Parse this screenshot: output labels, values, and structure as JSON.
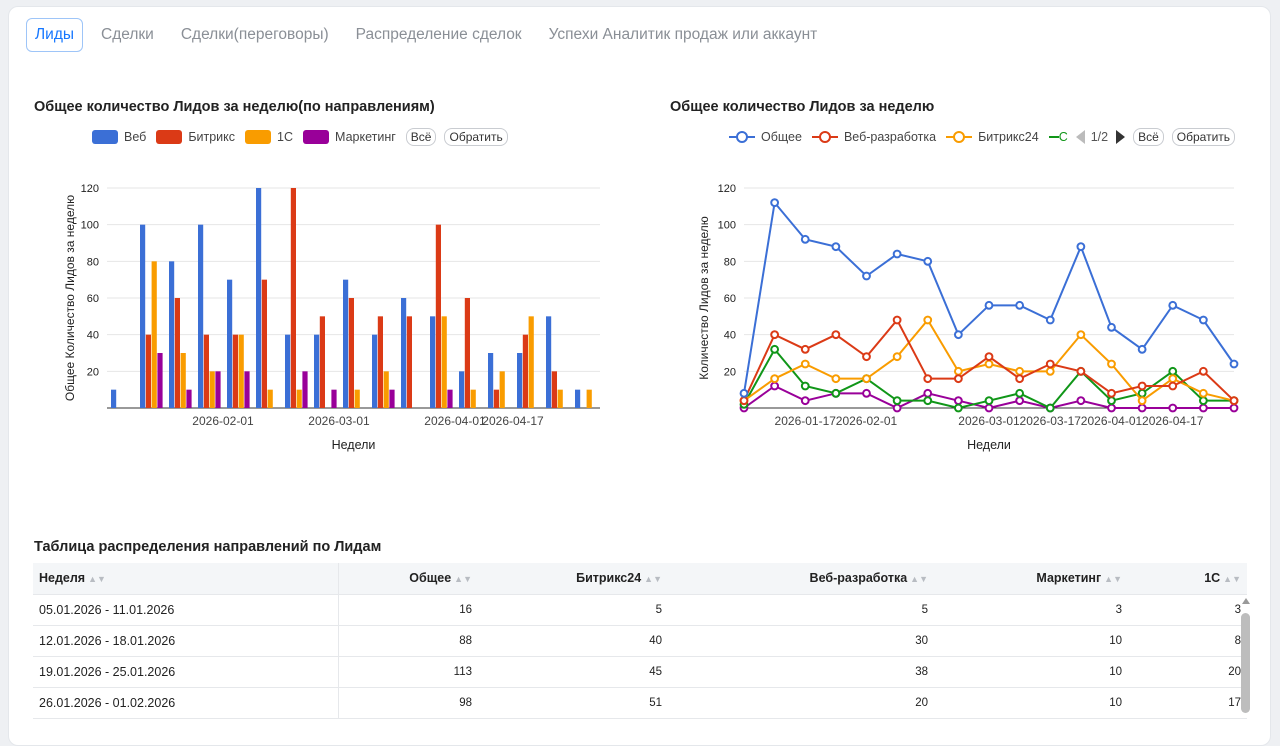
{
  "tabs": [
    {
      "label": "Лиды",
      "active": true
    },
    {
      "label": "Сделки",
      "active": false
    },
    {
      "label": "Сделки(переговоры)",
      "active": false
    },
    {
      "label": "Распределение сделок",
      "active": false
    },
    {
      "label": "Успехи Аналитик продаж или аккаунт",
      "active": false
    }
  ],
  "bar_chart": {
    "title": "Общее количество Лидов за неделю(по направлениям)",
    "legend": [
      {
        "label": "Веб",
        "color": "#3b6fd6"
      },
      {
        "label": "Битрикс",
        "color": "#db3a16"
      },
      {
        "label": "1С",
        "color": "#f99c00"
      },
      {
        "label": "Маркетинг",
        "color": "#990099"
      }
    ],
    "btn_all": "Всё",
    "btn_invert": "Обратить"
  },
  "line_chart": {
    "title": "Общее количество Лидов за неделю",
    "legend": [
      {
        "label": "Общее",
        "color": "#3b6fd6"
      },
      {
        "label": "Веб-разработка",
        "color": "#db3a16"
      },
      {
        "label": "Битрикс24",
        "color": "#f99c00"
      }
    ],
    "legend_cut_color": "#109618",
    "legend_cut_glyph": "С",
    "pager": "1/2",
    "btn_all": "Всё",
    "btn_invert": "Обратить"
  },
  "chart_data": [
    {
      "type": "bar",
      "title": "Общее количество Лидов за неделю(по направлениям)",
      "xlabel": "Недели",
      "ylabel": "Общее Количество Лидов за неделю",
      "ylim": [
        0,
        120
      ],
      "yticks": [
        20,
        40,
        60,
        80,
        100,
        120
      ],
      "x_tick_labels": [
        "2026-02-01",
        "2026-03-01",
        "2026-04-01",
        "2026-04-17"
      ],
      "grid": true,
      "legend_position": "top",
      "series": [
        {
          "name": "Веб",
          "values": [
            10,
            100,
            80,
            100,
            70,
            120,
            40,
            40,
            70,
            40,
            60,
            50,
            20,
            30,
            30,
            50,
            10
          ]
        },
        {
          "name": "Битрикс",
          "values": [
            0,
            40,
            60,
            40,
            40,
            70,
            120,
            50,
            60,
            50,
            50,
            100,
            60,
            10,
            40,
            20,
            0
          ]
        },
        {
          "name": "1С",
          "values": [
            0,
            80,
            30,
            20,
            40,
            10,
            10,
            0,
            10,
            20,
            0,
            50,
            10,
            20,
            50,
            10,
            10
          ]
        },
        {
          "name": "Маркетинг",
          "values": [
            0,
            30,
            10,
            20,
            20,
            0,
            20,
            10,
            0,
            10,
            0,
            10,
            0,
            0,
            0,
            0,
            0
          ]
        }
      ]
    },
    {
      "type": "line",
      "title": "Общее количество Лидов за неделю",
      "xlabel": "Недели",
      "ylabel": "Количество Лидов за неделю",
      "ylim": [
        0,
        120
      ],
      "yticks": [
        20,
        40,
        60,
        80,
        100,
        120
      ],
      "x_tick_labels": [
        "2026-01-17",
        "2026-02-01",
        "2026-03-01",
        "2026-03-17",
        "2026-04-01",
        "2026-04-17"
      ],
      "grid": true,
      "legend_position": "top",
      "series": [
        {
          "name": "Общее",
          "values": [
            8,
            112,
            92,
            88,
            72,
            84,
            80,
            40,
            56,
            56,
            48,
            88,
            44,
            32,
            56,
            48,
            24
          ]
        },
        {
          "name": "Веб-разработка",
          "values": [
            4,
            40,
            32,
            40,
            28,
            48,
            16,
            16,
            28,
            16,
            24,
            20,
            8,
            12,
            12,
            20,
            4
          ]
        },
        {
          "name": "Битрикс24",
          "values": [
            4,
            16,
            24,
            16,
            16,
            28,
            48,
            20,
            24,
            20,
            20,
            40,
            24,
            4,
            16,
            8,
            4
          ]
        },
        {
          "values": [
            2,
            32,
            12,
            8,
            16,
            4,
            4,
            0,
            4,
            8,
            0,
            20,
            4,
            8,
            20,
            4,
            4
          ]
        },
        {
          "values": [
            0,
            12,
            4,
            8,
            8,
            0,
            8,
            4,
            0,
            4,
            0,
            4,
            0,
            0,
            0,
            0,
            0
          ]
        }
      ],
      "series_colors": [
        "#3b6fd6",
        "#db3a16",
        "#f99c00",
        "#109618",
        "#990099"
      ]
    }
  ],
  "table": {
    "title": "Таблица распределения направлений по Лидам",
    "headers": [
      "Неделя",
      "Общее",
      "Битрикс24",
      "Веб-разработка",
      "Маркетинг",
      "1С"
    ],
    "rows": [
      [
        "05.01.2026 - 11.01.2026",
        "16",
        "5",
        "5",
        "3",
        "3"
      ],
      [
        "12.01.2026 - 18.01.2026",
        "88",
        "40",
        "30",
        "10",
        "8"
      ],
      [
        "19.01.2026 - 25.01.2026",
        "113",
        "45",
        "38",
        "10",
        "20"
      ],
      [
        "26.01.2026 - 01.02.2026",
        "98",
        "51",
        "20",
        "10",
        "17"
      ]
    ]
  }
}
